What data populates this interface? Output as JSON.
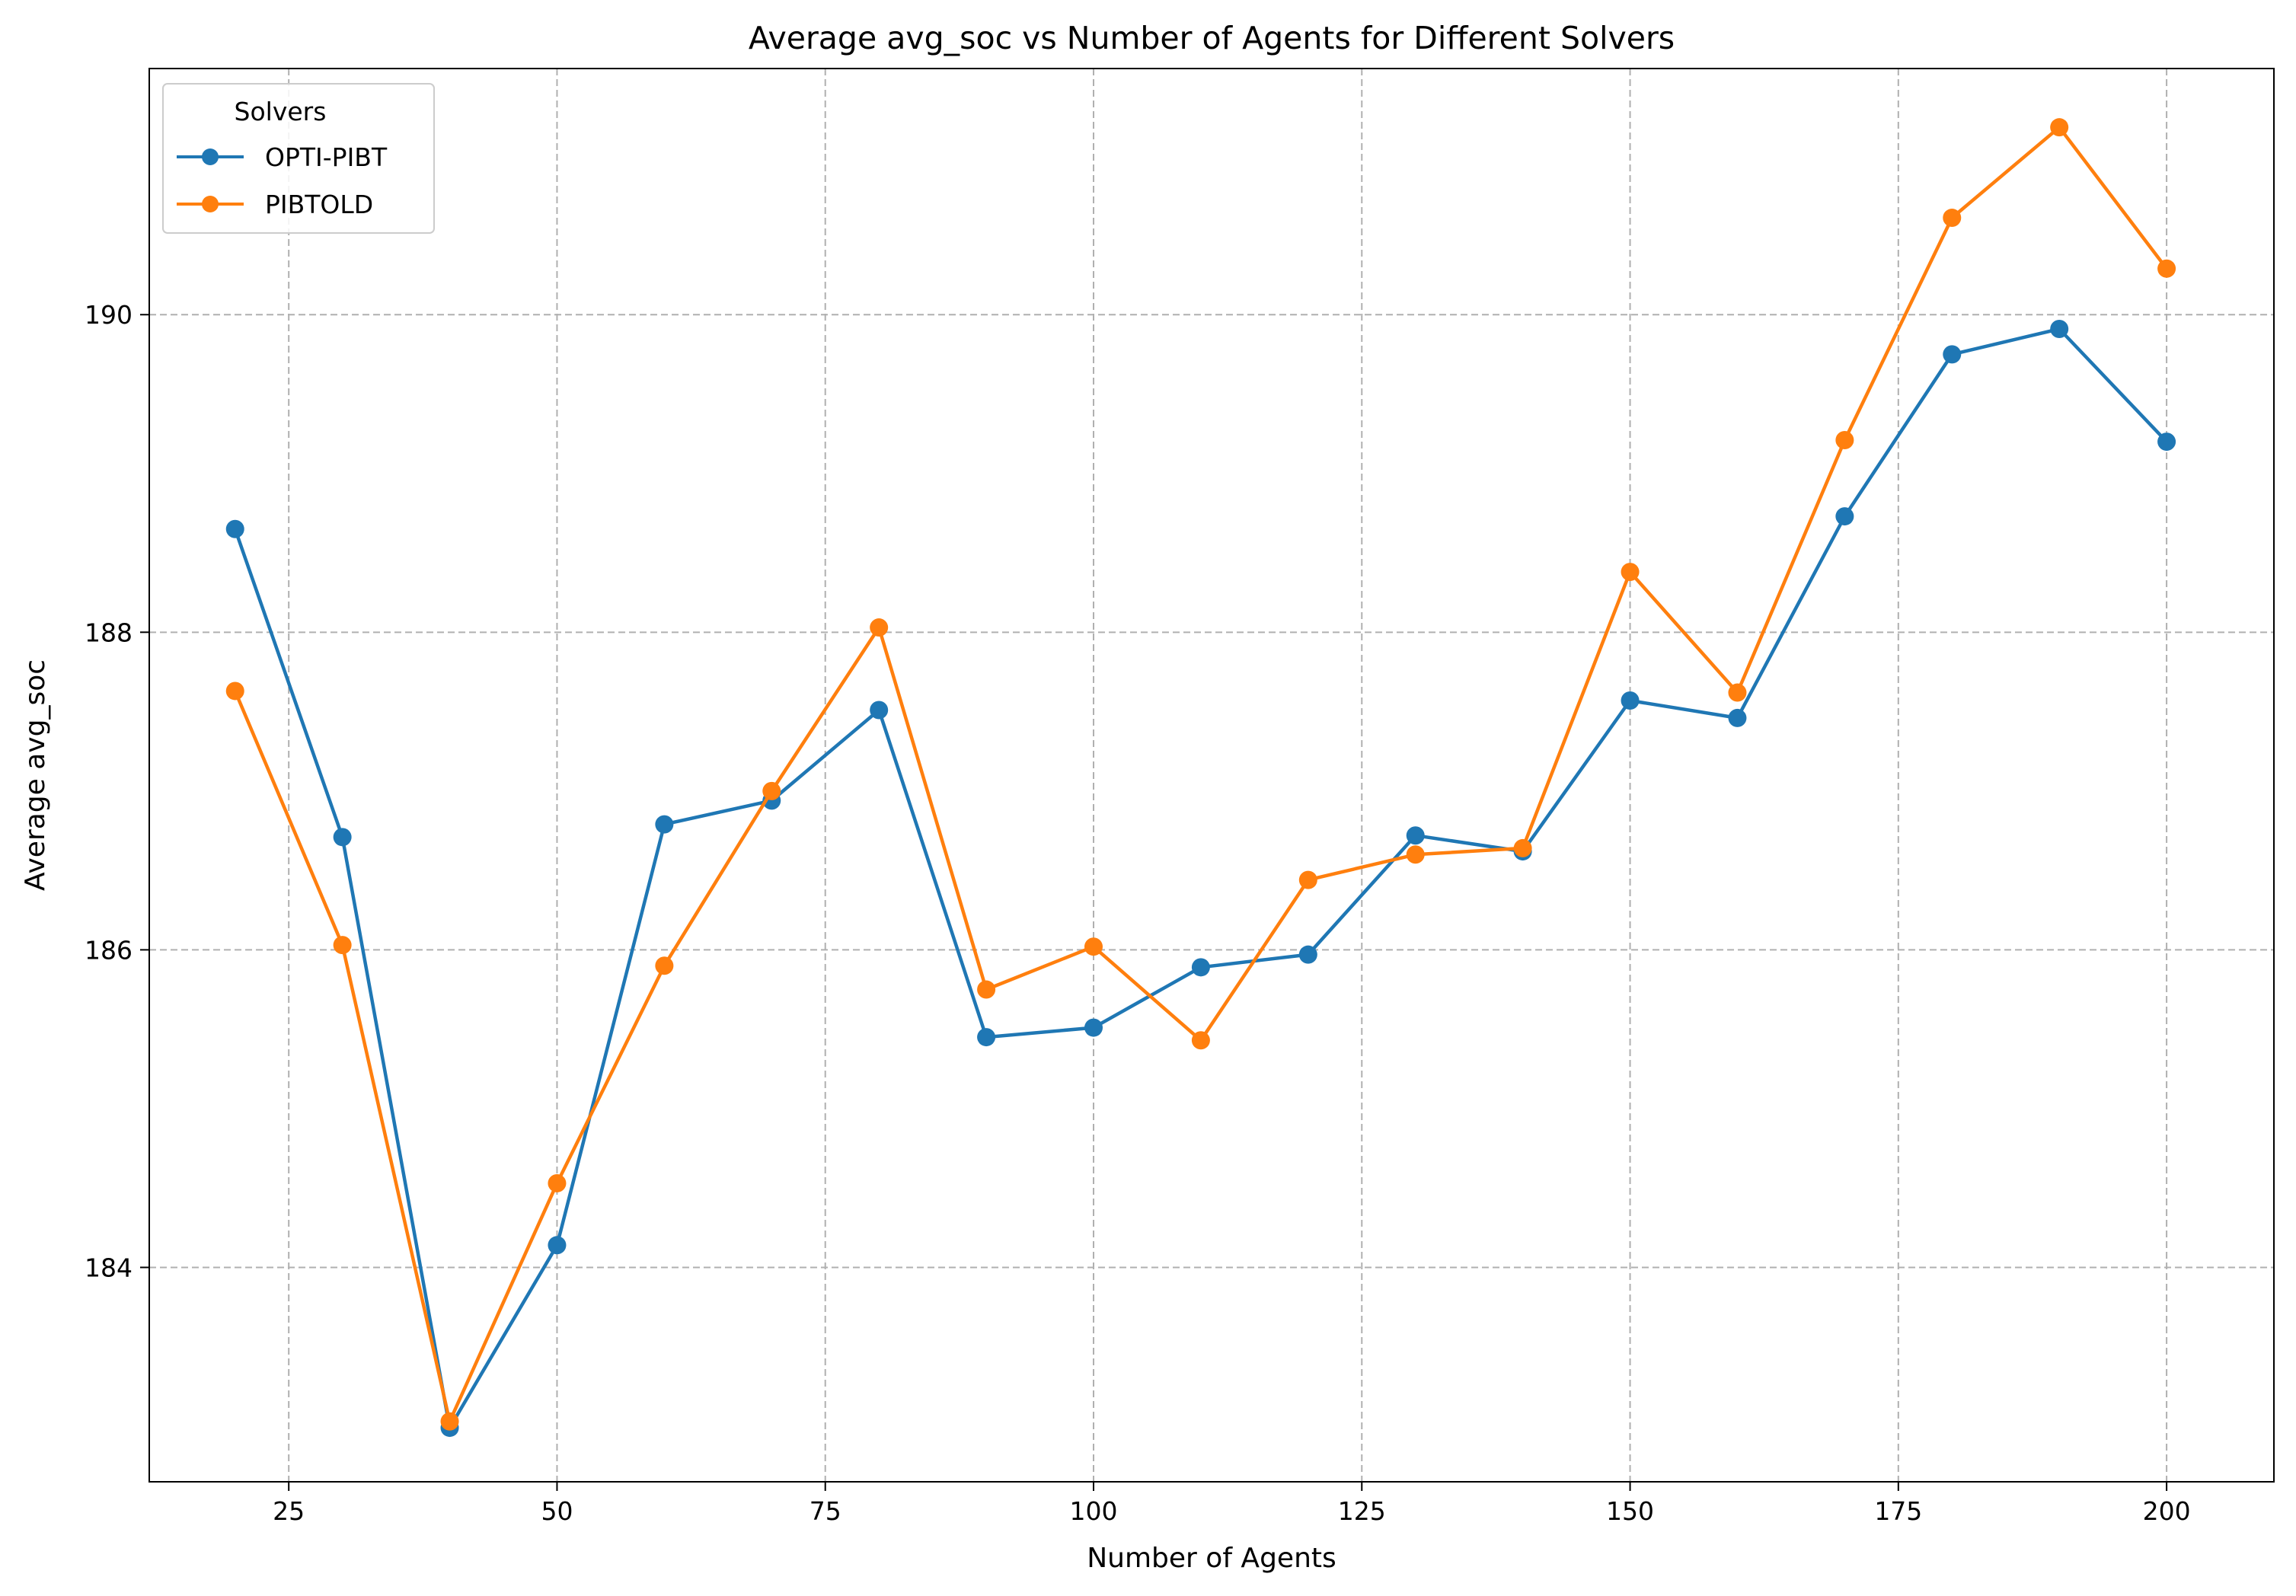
{
  "chart_data": {
    "type": "line",
    "title": "Average avg_soc vs Number of Agents for Different Solvers",
    "xlabel": "Number of Agents",
    "ylabel": "Average avg_soc",
    "xlim": [
      12,
      210
    ],
    "ylim": [
      182.65,
      191.55
    ],
    "xticks": [
      25,
      50,
      75,
      100,
      125,
      150,
      175,
      200
    ],
    "yticks": [
      184,
      186,
      188,
      190
    ],
    "grid": true,
    "legend": {
      "title": "Solvers",
      "placement": "top-left"
    },
    "x": [
      20,
      30,
      40,
      50,
      60,
      70,
      80,
      90,
      100,
      110,
      120,
      130,
      140,
      150,
      160,
      170,
      180,
      190,
      200
    ],
    "series": [
      {
        "name": "OPTI-PIBT",
        "color": "#1f77b4",
        "marker": "circle",
        "values": [
          188.65,
          186.71,
          182.99,
          184.14,
          186.79,
          186.94,
          187.51,
          185.45,
          185.51,
          185.89,
          185.97,
          186.72,
          186.62,
          187.57,
          187.46,
          188.73,
          189.75,
          189.91,
          189.2
        ]
      },
      {
        "name": "PIBTOLD",
        "color": "#ff7f0e",
        "marker": "circle",
        "values": [
          187.63,
          186.03,
          183.03,
          184.53,
          185.9,
          187.0,
          188.03,
          185.75,
          186.02,
          185.43,
          186.44,
          186.6,
          186.64,
          188.38,
          187.62,
          189.21,
          190.61,
          191.18,
          190.29
        ]
      }
    ]
  }
}
